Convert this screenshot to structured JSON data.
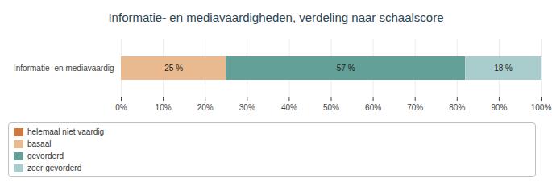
{
  "chart_data": {
    "type": "bar",
    "title": "Informatie- en mediavaardigheden, verdeling naar schaalscore",
    "categories": [
      "Informatie- en mediavaardig"
    ],
    "series": [
      {
        "name": "helemaal niet vaardig",
        "color": "#d2773b",
        "values": [
          0
        ]
      },
      {
        "name": "basaal",
        "color": "#e9ba8f",
        "values": [
          25
        ],
        "value_labels": [
          "25 %"
        ]
      },
      {
        "name": "gevorderd",
        "color": "#63a097",
        "values": [
          57
        ],
        "value_labels": [
          "57 %"
        ]
      },
      {
        "name": "zeer gevorderd",
        "color": "#a9cdcc",
        "values": [
          18
        ],
        "value_labels": [
          "18 %"
        ]
      }
    ],
    "xlim": [
      0,
      100
    ],
    "xticks": [
      {
        "value": 0,
        "label": "0%"
      },
      {
        "value": 10,
        "label": "10%"
      },
      {
        "value": 20,
        "label": "20%"
      },
      {
        "value": 30,
        "label": "30%"
      },
      {
        "value": 40,
        "label": "40%"
      },
      {
        "value": 50,
        "label": "50%"
      },
      {
        "value": 60,
        "label": "60%"
      },
      {
        "value": 70,
        "label": "70%"
      },
      {
        "value": 80,
        "label": "80%"
      },
      {
        "value": 90,
        "label": "90%"
      },
      {
        "value": 100,
        "label": "100%"
      }
    ],
    "orientation": "horizontal",
    "stacked": true,
    "grid": true,
    "data_labels": true,
    "legend": "bottom"
  }
}
